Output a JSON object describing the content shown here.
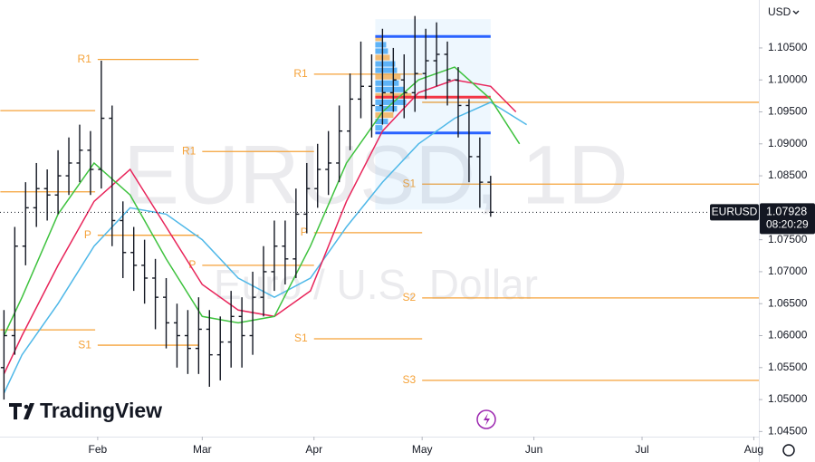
{
  "chart_data": {
    "type": "ohlc",
    "title": "EURUSD, 1D",
    "subtitle": "Euro / U.S. Dollar",
    "currency": "USD",
    "brand": "TradingView",
    "symbol": "EURUSD",
    "last_price": {
      "value": 1.07928,
      "label": "1.07928"
    },
    "countdown": "08:20:29",
    "xlim": [
      3.9,
      214.4
    ],
    "xticks": [
      {
        "value": 31,
        "label": "Feb"
      },
      {
        "value": 60,
        "label": "Mar"
      },
      {
        "value": 91,
        "label": "Apr"
      },
      {
        "value": 121,
        "label": "May"
      },
      {
        "value": 152,
        "label": "Jun"
      },
      {
        "value": 182,
        "label": "Jul"
      },
      {
        "value": 213,
        "label": "Aug"
      }
    ],
    "ylim": [
      1.0442,
      1.1125
    ],
    "yticks": [
      {
        "value": 1.045,
        "label": "1.04500"
      },
      {
        "value": 1.05,
        "label": "1.05000"
      },
      {
        "value": 1.055,
        "label": "1.05500"
      },
      {
        "value": 1.06,
        "label": "1.06000"
      },
      {
        "value": 1.065,
        "label": "1.06500"
      },
      {
        "value": 1.07,
        "label": "1.07000"
      },
      {
        "value": 1.075,
        "label": "1.07500"
      },
      {
        "value": 1.085,
        "label": "1.08500"
      },
      {
        "value": 1.09,
        "label": "1.09000"
      },
      {
        "value": 1.095,
        "label": "1.09500"
      },
      {
        "value": 1.1,
        "label": "1.10000"
      },
      {
        "value": 1.105,
        "label": "1.10500"
      }
    ],
    "bar_color": "#131722",
    "bars": {
      "x": [
        5,
        8,
        11,
        14,
        17,
        20,
        23,
        26,
        29,
        32,
        35,
        38,
        41,
        44,
        47,
        50,
        53,
        56,
        59,
        62,
        65,
        68,
        71,
        74,
        77,
        80,
        83,
        86,
        89,
        92,
        95,
        98,
        101,
        104,
        107,
        110,
        113,
        116,
        119,
        122,
        125,
        128,
        131,
        134,
        137,
        140
      ],
      "open": [
        1.055,
        1.06,
        1.074,
        1.08,
        1.083,
        1.082,
        1.085,
        1.087,
        1.089,
        1.086,
        1.094,
        1.078,
        1.073,
        1.071,
        1.069,
        1.066,
        1.062,
        1.06,
        1.058,
        1.061,
        1.057,
        1.059,
        1.063,
        1.06,
        1.066,
        1.07,
        1.074,
        1.072,
        1.079,
        1.083,
        1.086,
        1.087,
        1.092,
        1.097,
        1.099,
        1.096,
        1.098,
        1.1,
        1.098,
        1.101,
        1.103,
        1.104,
        1.1,
        1.096,
        1.088,
        1.084
      ],
      "high": [
        1.064,
        1.077,
        1.084,
        1.087,
        1.086,
        1.089,
        1.091,
        1.093,
        1.092,
        1.103,
        1.096,
        1.081,
        1.077,
        1.075,
        1.072,
        1.069,
        1.065,
        1.064,
        1.066,
        1.064,
        1.063,
        1.067,
        1.066,
        1.07,
        1.074,
        1.078,
        1.078,
        1.083,
        1.087,
        1.09,
        1.092,
        1.096,
        1.101,
        1.106,
        1.104,
        1.108,
        1.105,
        1.104,
        1.11,
        1.108,
        1.109,
        1.106,
        1.102,
        1.097,
        1.091,
        1.085
      ],
      "low": [
        1.05,
        1.057,
        1.071,
        1.077,
        1.078,
        1.079,
        1.082,
        1.084,
        1.082,
        1.083,
        1.074,
        1.069,
        1.067,
        1.065,
        1.061,
        1.058,
        1.055,
        1.054,
        1.054,
        1.052,
        1.053,
        1.055,
        1.055,
        1.057,
        1.063,
        1.067,
        1.068,
        1.069,
        1.076,
        1.08,
        1.082,
        1.084,
        1.089,
        1.094,
        1.091,
        1.093,
        1.095,
        1.094,
        1.095,
        1.097,
        1.099,
        1.096,
        1.091,
        1.084,
        1.08,
        1.0786
      ],
      "close": [
        1.06,
        1.074,
        1.08,
        1.083,
        1.082,
        1.085,
        1.087,
        1.089,
        1.086,
        1.094,
        1.078,
        1.073,
        1.071,
        1.069,
        1.066,
        1.062,
        1.06,
        1.058,
        1.061,
        1.057,
        1.059,
        1.063,
        1.06,
        1.066,
        1.07,
        1.074,
        1.072,
        1.079,
        1.083,
        1.086,
        1.087,
        1.092,
        1.097,
        1.099,
        1.096,
        1.098,
        1.1,
        1.098,
        1.101,
        1.103,
        1.104,
        1.1,
        1.096,
        1.088,
        1.084,
        1.0793
      ]
    },
    "series": [
      {
        "color": "#4fb8e8",
        "x": [
          5,
          10,
          20,
          30,
          40,
          50,
          60,
          70,
          80,
          90,
          100,
          110,
          120,
          130,
          140,
          150
        ],
        "values": [
          1.051,
          1.057,
          1.065,
          1.074,
          1.08,
          1.079,
          1.075,
          1.069,
          1.066,
          1.069,
          1.077,
          1.084,
          1.09,
          1.094,
          1.0965,
          1.093
        ]
      },
      {
        "color": "#e8245a",
        "x": [
          5,
          10,
          20,
          30,
          40,
          50,
          60,
          70,
          80,
          90,
          100,
          110,
          120,
          130,
          140,
          147
        ],
        "values": [
          1.054,
          1.06,
          1.071,
          1.081,
          1.086,
          1.077,
          1.068,
          1.064,
          1.063,
          1.067,
          1.081,
          1.092,
          1.098,
          1.1,
          1.099,
          1.095
        ]
      },
      {
        "color": "#3ec23e",
        "x": [
          5,
          10,
          20,
          30,
          40,
          50,
          60,
          70,
          80,
          90,
          100,
          110,
          120,
          130,
          140,
          148
        ],
        "values": [
          1.06,
          1.066,
          1.079,
          1.087,
          1.082,
          1.072,
          1.063,
          1.062,
          1.063,
          1.074,
          1.087,
          1.095,
          1.1,
          1.102,
          1.097,
          1.09
        ]
      }
    ],
    "pivot_color": "#f5a238",
    "pivots": [
      {
        "label": null,
        "start": 4,
        "end": 30.3,
        "value": 1.0952
      },
      {
        "label": null,
        "start": 4,
        "end": 30.3,
        "value": 1.0825
      },
      {
        "label": null,
        "start": 4,
        "end": 30.3,
        "value": 1.0609
      },
      {
        "label": "R1",
        "start": 31,
        "end": 59,
        "value": 1.1032
      },
      {
        "label": "P",
        "start": 31,
        "end": 59,
        "value": 1.0757
      },
      {
        "label": "S1",
        "start": 31,
        "end": 59,
        "value": 1.0585
      },
      {
        "label": "R1",
        "start": 60,
        "end": 91,
        "value": 1.0888
      },
      {
        "label": "P",
        "start": 60,
        "end": 91,
        "value": 1.071
      },
      {
        "label": "R1",
        "start": 91,
        "end": 121,
        "value": 1.1009
      },
      {
        "label": "P",
        "start": 91,
        "end": 121,
        "value": 1.0761
      },
      {
        "label": "S1",
        "start": 91,
        "end": 121,
        "value": 1.0595
      },
      {
        "label": null,
        "start": 121,
        "end": 214.4,
        "value": 1.0965
      },
      {
        "label": "S1",
        "start": 121,
        "end": 214.4,
        "value": 1.0837
      },
      {
        "label": "S2",
        "start": 121,
        "end": 214.4,
        "value": 1.0659
      },
      {
        "label": "S3",
        "start": 121,
        "end": 214.4,
        "value": 1.053
      }
    ],
    "volume_profile": {
      "x_range": [
        108,
        140
      ],
      "price_range": [
        1.0797,
        1.1095
      ],
      "value_area_high": 1.1068,
      "value_area_low": 1.0917,
      "poc": 1.0973,
      "prices": [
        1.1065,
        1.1055,
        1.1045,
        1.1035,
        1.1025,
        1.1015,
        1.1005,
        1.0995,
        1.0985,
        1.0975,
        1.0965,
        1.0955,
        1.0945,
        1.0935,
        1.0925
      ],
      "volumes": [
        20,
        30,
        35,
        40,
        55,
        60,
        70,
        65,
        80,
        100,
        85,
        60,
        50,
        35,
        20
      ]
    }
  }
}
